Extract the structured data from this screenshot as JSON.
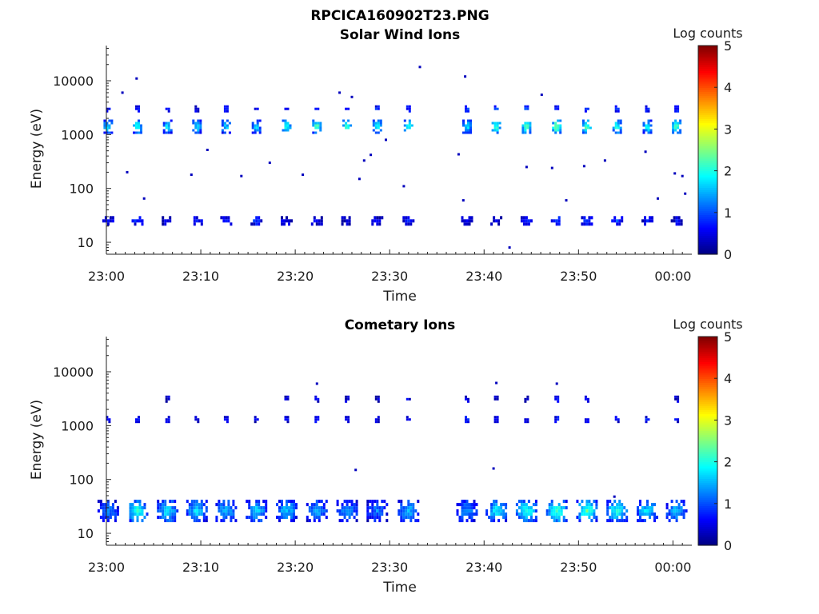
{
  "figure_title": "RPCICA160902T23.PNG",
  "chart_data": [
    {
      "type": "heatmap",
      "title": "Solar Wind Ions",
      "xlabel": "Time",
      "ylabel": "Energy (eV)",
      "y_scale": "log",
      "ylim": [
        6,
        45000
      ],
      "yticks": [
        10,
        100,
        1000,
        10000
      ],
      "ytick_labels": [
        "10",
        "100",
        "1000",
        "10000"
      ],
      "xlim_minutes": [
        0,
        62
      ],
      "xticks_minutes": [
        0,
        10,
        20,
        30,
        40,
        50,
        60
      ],
      "xtick_labels": [
        "23:00",
        "23:10",
        "23:20",
        "23:30",
        "23:40",
        "23:50",
        "00:00"
      ],
      "colorbar": {
        "label": "Log counts",
        "range": [
          0,
          5
        ],
        "ticks": [
          0,
          1,
          2,
          3,
          4,
          5
        ],
        "tick_labels": [
          "0",
          "1",
          "2",
          "3",
          "4",
          "5"
        ],
        "colormap": "jet"
      },
      "scan_minutes": [
        0.2,
        3.3,
        6.5,
        9.6,
        12.7,
        15.9,
        19.1,
        22.3,
        25.5,
        28.7,
        32.0,
        38.2,
        41.3,
        44.5,
        47.7,
        50.9,
        54.1,
        57.3,
        60.4
      ],
      "clusters": [
        {
          "name": "high",
          "energy_eV": 1400,
          "levels": [
            2.0,
            2.3,
            1.9,
            1.9,
            1.8,
            1.8,
            2.1,
            2.5,
            2.3,
            2.2,
            2.3,
            2.0,
            2.4,
            2.4,
            2.8,
            2.5,
            2.2,
            2.1,
            2.4
          ]
        },
        {
          "name": "upper",
          "energy_eV": 3000,
          "levels": [
            0.9,
            0.8,
            0.9,
            0.8,
            0.8,
            0.8,
            0.9,
            1.0,
            0.9,
            1.0,
            1.0,
            1.2,
            1.1,
            1.2,
            1.1,
            1.1,
            1.0,
            1.1,
            1.0
          ]
        },
        {
          "name": "low",
          "energy_eV": 25,
          "levels": [
            0.7,
            0.9,
            0.7,
            0.8,
            0.7,
            0.9,
            0.6,
            0.6,
            0.5,
            0.5,
            0.7,
            0.6,
            0.6,
            0.9,
            1.0,
            1.0,
            0.9,
            0.7,
            0.6
          ]
        }
      ],
      "scattered_points": [
        {
          "t": 1.7,
          "e": 6000
        },
        {
          "t": 3.2,
          "e": 11000
        },
        {
          "t": 2.2,
          "e": 200
        },
        {
          "t": 4.0,
          "e": 65
        },
        {
          "t": 9.0,
          "e": 180
        },
        {
          "t": 10.7,
          "e": 520
        },
        {
          "t": 14.3,
          "e": 170
        },
        {
          "t": 17.3,
          "e": 300
        },
        {
          "t": 20.8,
          "e": 180
        },
        {
          "t": 24.7,
          "e": 6000
        },
        {
          "t": 26.0,
          "e": 5000
        },
        {
          "t": 27.3,
          "e": 330
        },
        {
          "t": 26.8,
          "e": 150
        },
        {
          "t": 28.0,
          "e": 420
        },
        {
          "t": 29.6,
          "e": 800
        },
        {
          "t": 31.5,
          "e": 110
        },
        {
          "t": 33.2,
          "e": 18000
        },
        {
          "t": 37.3,
          "e": 430
        },
        {
          "t": 37.8,
          "e": 60
        },
        {
          "t": 38.0,
          "e": 12000
        },
        {
          "t": 42.7,
          "e": 8
        },
        {
          "t": 44.5,
          "e": 250
        },
        {
          "t": 46.1,
          "e": 5500
        },
        {
          "t": 47.2,
          "e": 240
        },
        {
          "t": 48.7,
          "e": 60
        },
        {
          "t": 50.6,
          "e": 260
        },
        {
          "t": 52.8,
          "e": 330
        },
        {
          "t": 57.1,
          "e": 480
        },
        {
          "t": 58.4,
          "e": 65
        },
        {
          "t": 60.2,
          "e": 190
        },
        {
          "t": 61.0,
          "e": 170
        },
        {
          "t": 61.3,
          "e": 80
        }
      ]
    },
    {
      "type": "heatmap",
      "title": "Cometary Ions",
      "xlabel": "Time",
      "ylabel": "Energy (eV)",
      "y_scale": "log",
      "ylim": [
        6,
        45000
      ],
      "yticks": [
        10,
        100,
        1000,
        10000
      ],
      "ytick_labels": [
        "10",
        "100",
        "1000",
        "10000"
      ],
      "xlim_minutes": [
        0,
        62
      ],
      "xticks_minutes": [
        0,
        10,
        20,
        30,
        40,
        50,
        60
      ],
      "xtick_labels": [
        "23:00",
        "23:10",
        "23:20",
        "23:30",
        "23:40",
        "23:50",
        "00:00"
      ],
      "colorbar": {
        "label": "Log counts",
        "range": [
          0,
          5
        ],
        "ticks": [
          0,
          1,
          2,
          3,
          4,
          5
        ],
        "tick_labels": [
          "0",
          "1",
          "2",
          "3",
          "4",
          "5"
        ],
        "colormap": "jet"
      },
      "scan_minutes": [
        0.2,
        3.3,
        6.5,
        9.6,
        12.7,
        15.9,
        19.1,
        22.3,
        25.5,
        28.7,
        32.0,
        38.2,
        41.3,
        44.5,
        47.7,
        50.9,
        54.1,
        57.3,
        60.4
      ],
      "clusters": [
        {
          "name": "high",
          "energy_eV": 1300,
          "levels": [
            0.8,
            0.7,
            0.8,
            0.6,
            0.6,
            0.6,
            0.8,
            0.8,
            0.6,
            0.6,
            0.8,
            0.9,
            0.8,
            0.8,
            0.9,
            0.8,
            0.7,
            0.8,
            0.8
          ]
        },
        {
          "name": "upper",
          "energy_eV": 3100,
          "levels": [
            0.0,
            0.0,
            0.5,
            0.0,
            0.0,
            0.0,
            0.5,
            0.6,
            0.5,
            0.5,
            0.6,
            0.5,
            0.6,
            0.5,
            0.7,
            0.5,
            0.0,
            0.0,
            0.5
          ]
        },
        {
          "name": "low",
          "energy_eV": 26,
          "levels": [
            1.3,
            2.2,
            1.9,
            1.8,
            1.7,
            1.8,
            1.7,
            1.6,
            1.5,
            1.3,
            1.6,
            1.5,
            1.9,
            2.2,
            2.4,
            2.4,
            2.2,
            1.9,
            1.7
          ]
        }
      ],
      "scattered_points": [
        {
          "t": 22.3,
          "e": 6000
        },
        {
          "t": 26.4,
          "e": 150
        },
        {
          "t": 41.0,
          "e": 160
        },
        {
          "t": 41.3,
          "e": 6200
        },
        {
          "t": 47.7,
          "e": 6000
        },
        {
          "t": 53.8,
          "e": 48
        }
      ]
    }
  ]
}
